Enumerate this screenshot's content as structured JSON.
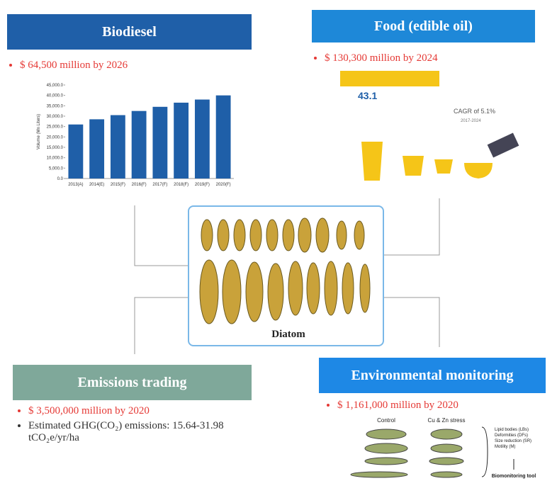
{
  "biodiesel": {
    "title": "Biodiesel",
    "bullet": "$ 64,500 million by 2026",
    "chart": {
      "type": "bar",
      "y_label": "Volume (Mn Liters)",
      "categories": [
        "2013(A)",
        "2014(E)",
        "2015(F)",
        "2016(F)",
        "2017(F)",
        "2018(F)",
        "2019(F)",
        "2020(F)"
      ],
      "values": [
        26000,
        28500,
        30500,
        32500,
        34500,
        36500,
        38000,
        40000
      ],
      "color": "#1f5fa8",
      "ylim": [
        0,
        45000
      ],
      "yticks": [
        {
          "value": 0,
          "label": "0.0"
        },
        {
          "value": 5000,
          "label": "5,000.0"
        },
        {
          "value": 10000,
          "label": "10,000.0"
        },
        {
          "value": 15000,
          "label": "15,000.0"
        },
        {
          "value": 20000,
          "label": "20,000.0"
        },
        {
          "value": 25000,
          "label": "25,000.0"
        },
        {
          "value": 30000,
          "label": "30,000.0"
        },
        {
          "value": 35000,
          "label": "35,000.0"
        },
        {
          "value": 40000,
          "label": "40,000.0"
        },
        {
          "value": 45000,
          "label": "45,000.0"
        }
      ]
    }
  },
  "food": {
    "title": "Food (edible oil)",
    "bullet": "$ 130,300 million by 2024",
    "figure": {
      "value": "43.1",
      "cagr": "CAGR of 5.1%",
      "period": "2017-2024"
    }
  },
  "center": {
    "label": "Diatom"
  },
  "emissions": {
    "title": "Emissions trading",
    "bullets": [
      "$ 3,500,000 million by 2020",
      "Estimated GHG(CO₂) emissions: 15.64-31.98 tCO₂e/yr/ha"
    ]
  },
  "monitoring": {
    "title": "Environmental monitoring",
    "bullet": "$ 1,161,000 million by 2020",
    "figure": {
      "columns": [
        "Control",
        "Cu & Zn stress"
      ],
      "legend": [
        "Lipid bodies (LBs)",
        "Deformities (DFs)",
        "Size reduction (SR)",
        "Motility (M)"
      ],
      "tool": "Biomonitoring tool"
    }
  }
}
